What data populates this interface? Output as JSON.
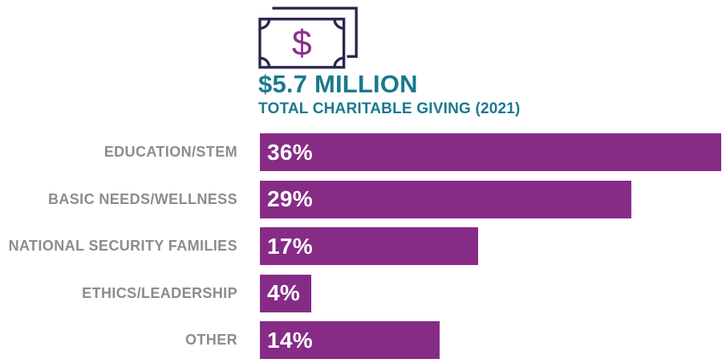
{
  "header": {
    "title": "$5.7 MILLION",
    "subtitle": "TOTAL CHARITABLE GIVING (2021)"
  },
  "icon": {
    "name": "money-bill-icon",
    "dollar_glyph": "$"
  },
  "colors": {
    "teal": "#1A798D",
    "purple": "#862C87",
    "label_gray": "#8A8C8E",
    "icon_outline": "#2B2550",
    "dollar_purple": "#8E2D90",
    "bar_text": "#FFFFFF",
    "bg": "#FFFFFF"
  },
  "chart_data": {
    "type": "bar",
    "orientation": "horizontal",
    "title": "$5.7 MILLION",
    "subtitle": "TOTAL CHARITABLE GIVING (2021)",
    "categories": [
      "EDUCATION/STEM",
      "BASIC NEEDS/WELLNESS",
      "NATIONAL SECURITY FAMILIES",
      "ETHICS/LEADERSHIP",
      "OTHER"
    ],
    "values": [
      36,
      29,
      17,
      4,
      14
    ],
    "value_labels": [
      "36%",
      "29%",
      "17%",
      "4%",
      "14%"
    ],
    "unit": "%",
    "axis_max": 36,
    "grid": false,
    "legend": "none",
    "bar_color": "#862C87",
    "label_color": "#8A8C8E",
    "value_text_color": "#FFFFFF"
  }
}
